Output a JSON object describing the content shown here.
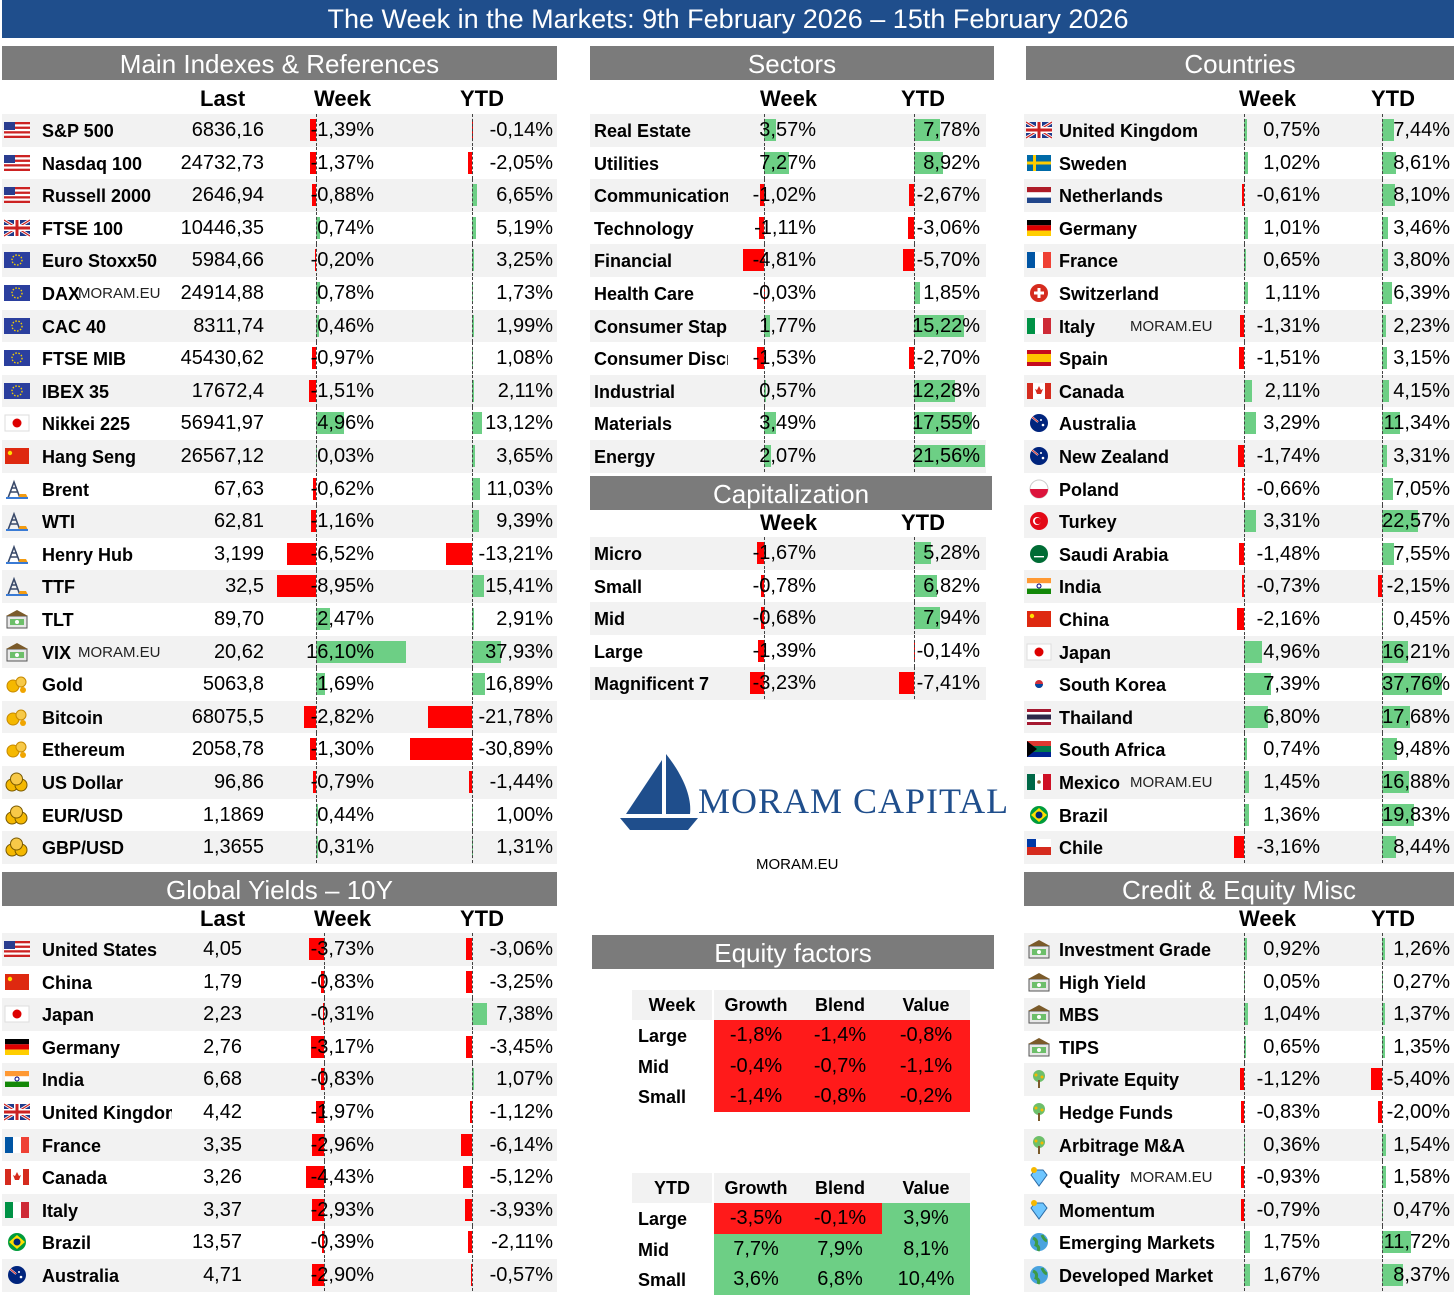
{
  "banner": "The Week in the Markets: 9th February 2026 – 15th February 2026",
  "watermark": "MORAM.EU",
  "colors": {
    "negative": "#ff0000",
    "positive": "#6dcf85",
    "header": "#7b7b7b",
    "banner": "#1f4e8c"
  },
  "main": {
    "title": "Main Indexes & References",
    "cols": [
      "Last",
      "Week",
      "YTD"
    ],
    "rows": [
      {
        "name": "S&P 500",
        "icon": "us-flag-icon",
        "last": "6836,16",
        "week": -1.39,
        "week_s": "-1,39%",
        "ytd": -0.14,
        "ytd_s": "-0,14%"
      },
      {
        "name": "Nasdaq 100",
        "icon": "us-flag-icon",
        "last": "24732,73",
        "week": -1.37,
        "week_s": "-1,37%",
        "ytd": -2.05,
        "ytd_s": "-2,05%"
      },
      {
        "name": "Russell 2000",
        "icon": "us-flag-icon",
        "last": "2646,94",
        "week": -0.88,
        "week_s": "-0,88%",
        "ytd": 6.65,
        "ytd_s": "6,65%"
      },
      {
        "name": "FTSE 100",
        "icon": "uk-flag-icon",
        "last": "10446,35",
        "week": 0.74,
        "week_s": "0,74%",
        "ytd": 5.19,
        "ytd_s": "5,19%"
      },
      {
        "name": "Euro Stoxx50",
        "icon": "eu-flag-icon",
        "last": "5984,66",
        "week": -0.2,
        "week_s": "-0,20%",
        "ytd": 3.25,
        "ytd_s": "3,25%"
      },
      {
        "name": "DAX",
        "icon": "eu-flag-icon",
        "wm": "MORAM.EU",
        "last": "24914,88",
        "week": 0.78,
        "week_s": "0,78%",
        "ytd": 1.73,
        "ytd_s": "1,73%"
      },
      {
        "name": "CAC 40",
        "icon": "eu-flag-icon",
        "last": "8311,74",
        "week": 0.46,
        "week_s": "0,46%",
        "ytd": 1.99,
        "ytd_s": "1,99%"
      },
      {
        "name": "FTSE MIB",
        "icon": "eu-flag-icon",
        "last": "45430,62",
        "week": -0.97,
        "week_s": "-0,97%",
        "ytd": 1.08,
        "ytd_s": "1,08%"
      },
      {
        "name": "IBEX 35",
        "icon": "eu-flag-icon",
        "last": "17672,4",
        "week": -1.51,
        "week_s": "-1,51%",
        "ytd": 2.11,
        "ytd_s": "2,11%"
      },
      {
        "name": "Nikkei 225",
        "icon": "japan-flag-icon",
        "last": "56941,97",
        "week": 4.96,
        "week_s": "4,96%",
        "ytd": 13.12,
        "ytd_s": "13,12%"
      },
      {
        "name": "Hang Seng",
        "icon": "china-flag-icon",
        "last": "26567,12",
        "week": 0.03,
        "week_s": "0,03%",
        "ytd": 3.65,
        "ytd_s": "3,65%"
      },
      {
        "name": "Brent",
        "icon": "oil-rig-icon",
        "last": "67,63",
        "week": -0.62,
        "week_s": "-0,62%",
        "ytd": 11.03,
        "ytd_s": "11,03%"
      },
      {
        "name": "WTI",
        "icon": "oil-rig-icon",
        "last": "62,81",
        "week": -1.16,
        "week_s": "-1,16%",
        "ytd": 9.39,
        "ytd_s": "9,39%"
      },
      {
        "name": "Henry Hub",
        "icon": "oil-rig-icon",
        "last": "3,199",
        "week": -6.52,
        "week_s": "-6,52%",
        "ytd": -13.21,
        "ytd_s": "-13,21%"
      },
      {
        "name": "TTF",
        "icon": "oil-rig-icon",
        "last": "32,5",
        "week": -8.95,
        "week_s": "-8,95%",
        "ytd": 15.41,
        "ytd_s": "15,41%"
      },
      {
        "name": "TLT",
        "icon": "bank-icon",
        "last": "89,70",
        "week": 2.47,
        "week_s": "2,47%",
        "ytd": 2.91,
        "ytd_s": "2,91%"
      },
      {
        "name": "VIX",
        "icon": "bank-icon",
        "wm": "MORAM.EU",
        "last": "20,62",
        "week": 16.1,
        "week_s": "16,10%",
        "ytd": 37.93,
        "ytd_s": "37,93%"
      },
      {
        "name": "Gold",
        "icon": "coin-icon",
        "last": "5063,8",
        "week": 1.69,
        "week_s": "1,69%",
        "ytd": 16.89,
        "ytd_s": "16,89%"
      },
      {
        "name": "Bitcoin",
        "icon": "coin-icon",
        "last": "68075,5",
        "week": -2.82,
        "week_s": "-2,82%",
        "ytd": -21.78,
        "ytd_s": "-21,78%"
      },
      {
        "name": "Ethereum",
        "icon": "coin-icon",
        "last": "2058,78",
        "week": -1.3,
        "week_s": "-1,30%",
        "ytd": -30.89,
        "ytd_s": "-30,89%"
      },
      {
        "name": "US Dollar",
        "icon": "coins-icon",
        "last": "96,86",
        "week": -0.79,
        "week_s": "-0,79%",
        "ytd": -1.44,
        "ytd_s": "-1,44%"
      },
      {
        "name": "EUR/USD",
        "icon": "coins-icon",
        "last": "1,1869",
        "week": 0.44,
        "week_s": "0,44%",
        "ytd": 1.0,
        "ytd_s": "1,00%"
      },
      {
        "name": "GBP/USD",
        "icon": "coins-icon",
        "last": "1,3655",
        "week": 0.31,
        "week_s": "0,31%",
        "ytd": 1.31,
        "ytd_s": "1,31%"
      }
    ]
  },
  "sectors": {
    "title": "Sectors",
    "cols": [
      "Week",
      "YTD"
    ],
    "rows": [
      {
        "name": "Real Estate",
        "week": 3.57,
        "week_s": "3,57%",
        "ytd": 7.78,
        "ytd_s": "7,78%"
      },
      {
        "name": "Utilities",
        "week": 7.27,
        "week_s": "7,27%",
        "ytd": 8.92,
        "ytd_s": "8,92%"
      },
      {
        "name": "Communication",
        "week": -1.02,
        "week_s": "-1,02%",
        "ytd": -2.67,
        "ytd_s": "-2,67%"
      },
      {
        "name": "Technology",
        "week": -1.11,
        "week_s": "-1,11%",
        "ytd": -3.06,
        "ytd_s": "-3,06%"
      },
      {
        "name": "Financial",
        "week": -4.81,
        "week_s": "-4,81%",
        "ytd": -5.7,
        "ytd_s": "-5,70%"
      },
      {
        "name": "Health Care",
        "week": -0.03,
        "week_s": "-0,03%",
        "ytd": 1.85,
        "ytd_s": "1,85%"
      },
      {
        "name": "Consumer Staple",
        "week": 1.77,
        "week_s": "1,77%",
        "ytd": 15.22,
        "ytd_s": "15,22%"
      },
      {
        "name": "Consumer Discre",
        "week": -1.53,
        "week_s": "-1,53%",
        "ytd": -2.7,
        "ytd_s": "-2,70%"
      },
      {
        "name": "Industrial",
        "week": 0.57,
        "week_s": "0,57%",
        "ytd": 12.28,
        "ytd_s": "12,28%"
      },
      {
        "name": "Materials",
        "week": 3.49,
        "week_s": "3,49%",
        "ytd": 17.55,
        "ytd_s": "17,55%"
      },
      {
        "name": "Energy",
        "week": 2.07,
        "week_s": "2,07%",
        "ytd": 21.56,
        "ytd_s": "21,56%"
      }
    ]
  },
  "cap": {
    "title": "Capitalization",
    "cols": [
      "Week",
      "YTD"
    ],
    "rows": [
      {
        "name": "Micro",
        "week": -1.67,
        "week_s": "-1,67%",
        "ytd": 5.28,
        "ytd_s": "5,28%"
      },
      {
        "name": "Small",
        "week": -0.78,
        "week_s": "-0,78%",
        "ytd": 6.82,
        "ytd_s": "6,82%"
      },
      {
        "name": "Mid",
        "week": -0.68,
        "week_s": "-0,68%",
        "ytd": 7.94,
        "ytd_s": "7,94%"
      },
      {
        "name": "Large",
        "week": -1.39,
        "week_s": "-1,39%",
        "ytd": -0.14,
        "ytd_s": "-0,14%"
      },
      {
        "name": "Magnificent 7",
        "week": -3.23,
        "week_s": "-3,23%",
        "ytd": -7.41,
        "ytd_s": "-7,41%"
      }
    ]
  },
  "countries": {
    "title": "Countries",
    "cols": [
      "Week",
      "YTD"
    ],
    "rows": [
      {
        "name": "United Kingdom",
        "icon": "uk-flag-icon",
        "week": 0.75,
        "week_s": "0,75%",
        "ytd": 7.44,
        "ytd_s": "7,44%"
      },
      {
        "name": "Sweden",
        "icon": "sweden-flag-icon",
        "week": 1.02,
        "week_s": "1,02%",
        "ytd": 8.61,
        "ytd_s": "8,61%"
      },
      {
        "name": "Netherlands",
        "icon": "netherlands-flag-icon",
        "week": -0.61,
        "week_s": "-0,61%",
        "ytd": 8.1,
        "ytd_s": "8,10%"
      },
      {
        "name": "Germany",
        "icon": "germany-flag-icon",
        "week": 1.01,
        "week_s": "1,01%",
        "ytd": 3.46,
        "ytd_s": "3,46%"
      },
      {
        "name": "France",
        "icon": "france-flag-icon",
        "week": 0.65,
        "week_s": "0,65%",
        "ytd": 3.8,
        "ytd_s": "3,80%"
      },
      {
        "name": "Switzerland",
        "icon": "switzerland-flag-icon",
        "week": 1.11,
        "week_s": "1,11%",
        "ytd": 6.39,
        "ytd_s": "6,39%"
      },
      {
        "name": "Italy",
        "icon": "italy-flag-icon",
        "wm": "MORAM.EU",
        "week": -1.31,
        "week_s": "-1,31%",
        "ytd": 2.23,
        "ytd_s": "2,23%"
      },
      {
        "name": "Spain",
        "icon": "spain-flag-icon",
        "week": -1.51,
        "week_s": "-1,51%",
        "ytd": 3.15,
        "ytd_s": "3,15%"
      },
      {
        "name": "Canada",
        "icon": "canada-flag-icon",
        "week": 2.11,
        "week_s": "2,11%",
        "ytd": 4.15,
        "ytd_s": "4,15%"
      },
      {
        "name": "Australia",
        "icon": "australia-flag-icon",
        "week": 3.29,
        "week_s": "3,29%",
        "ytd": 11.34,
        "ytd_s": "11,34%"
      },
      {
        "name": "New Zealand",
        "icon": "new-zealand-flag-icon",
        "week": -1.74,
        "week_s": "-1,74%",
        "ytd": 3.31,
        "ytd_s": "3,31%"
      },
      {
        "name": "Poland",
        "icon": "poland-flag-icon",
        "week": -0.66,
        "week_s": "-0,66%",
        "ytd": 7.05,
        "ytd_s": "7,05%"
      },
      {
        "name": "Turkey",
        "icon": "turkey-flag-icon",
        "week": 3.31,
        "week_s": "3,31%",
        "ytd": 22.57,
        "ytd_s": "22,57%"
      },
      {
        "name": "Saudi Arabia",
        "icon": "saudi-flag-icon",
        "week": -1.48,
        "week_s": "-1,48%",
        "ytd": 7.55,
        "ytd_s": "7,55%"
      },
      {
        "name": "India",
        "icon": "india-flag-icon",
        "week": -0.73,
        "week_s": "-0,73%",
        "ytd": -2.15,
        "ytd_s": "-2,15%"
      },
      {
        "name": "China",
        "icon": "china-flag-icon",
        "week": -2.16,
        "week_s": "-2,16%",
        "ytd": 0.45,
        "ytd_s": "0,45%"
      },
      {
        "name": "Japan",
        "icon": "japan-flag-icon",
        "week": 4.96,
        "week_s": "4,96%",
        "ytd": 16.21,
        "ytd_s": "16,21%"
      },
      {
        "name": "South Korea",
        "icon": "south-korea-flag-icon",
        "week": 7.39,
        "week_s": "7,39%",
        "ytd": 37.76,
        "ytd_s": "37,76%"
      },
      {
        "name": "Thailand",
        "icon": "thailand-flag-icon",
        "week": 6.8,
        "week_s": "6,80%",
        "ytd": 17.68,
        "ytd_s": "17,68%"
      },
      {
        "name": "South Africa",
        "icon": "south-africa-flag-icon",
        "week": 0.74,
        "week_s": "0,74%",
        "ytd": 9.48,
        "ytd_s": "9,48%"
      },
      {
        "name": "Mexico",
        "icon": "mexico-flag-icon",
        "wm": "MORAM.EU",
        "week": 1.45,
        "week_s": "1,45%",
        "ytd": 16.88,
        "ytd_s": "16,88%"
      },
      {
        "name": "Brazil",
        "icon": "brazil-flag-icon",
        "week": 1.36,
        "week_s": "1,36%",
        "ytd": 19.83,
        "ytd_s": "19,83%"
      },
      {
        "name": "Chile",
        "icon": "chile-flag-icon",
        "week": -3.16,
        "week_s": "-3,16%",
        "ytd": 8.44,
        "ytd_s": "8,44%"
      }
    ]
  },
  "yields": {
    "title": "Global Yields – 10Y",
    "cols": [
      "Last",
      "Week",
      "YTD"
    ],
    "rows": [
      {
        "name": "United States",
        "icon": "us-flag-icon",
        "last": "4,05",
        "week": -3.73,
        "week_s": "-3,73%",
        "ytd": -3.06,
        "ytd_s": "-3,06%"
      },
      {
        "name": "China",
        "icon": "china-flag-icon",
        "last": "1,79",
        "week": -0.83,
        "week_s": "-0,83%",
        "ytd": -3.25,
        "ytd_s": "-3,25%"
      },
      {
        "name": "Japan",
        "icon": "japan-flag-icon",
        "last": "2,23",
        "week": -0.31,
        "week_s": "-0,31%",
        "ytd": 7.38,
        "ytd_s": "7,38%"
      },
      {
        "name": "Germany",
        "icon": "germany-flag-icon",
        "last": "2,76",
        "week": -3.17,
        "week_s": "-3,17%",
        "ytd": -3.45,
        "ytd_s": "-3,45%"
      },
      {
        "name": "India",
        "icon": "india-flag-icon",
        "last": "6,68",
        "week": -0.83,
        "week_s": "-0,83%",
        "ytd": 1.07,
        "ytd_s": "1,07%"
      },
      {
        "name": "United Kingdom",
        "icon": "uk-flag-icon",
        "last": "4,42",
        "week": -1.97,
        "week_s": "-1,97%",
        "ytd": -1.12,
        "ytd_s": "-1,12%"
      },
      {
        "name": "France",
        "icon": "france-flag-icon",
        "last": "3,35",
        "week": -2.96,
        "week_s": "-2,96%",
        "ytd": -6.14,
        "ytd_s": "-6,14%"
      },
      {
        "name": "Canada",
        "icon": "canada-flag-icon",
        "last": "3,26",
        "week": -4.43,
        "week_s": "-4,43%",
        "ytd": -5.12,
        "ytd_s": "-5,12%"
      },
      {
        "name": "Italy",
        "icon": "italy-flag-icon",
        "last": "3,37",
        "week": -2.93,
        "week_s": "-2,93%",
        "ytd": -3.93,
        "ytd_s": "-3,93%"
      },
      {
        "name": "Brazil",
        "icon": "brazil-flag-icon",
        "last": "13,57",
        "week": -0.39,
        "week_s": "-0,39%",
        "ytd": -2.11,
        "ytd_s": "-2,11%"
      },
      {
        "name": "Australia",
        "icon": "australia-flag-icon",
        "last": "4,71",
        "week": -2.9,
        "week_s": "-2,90%",
        "ytd": -0.57,
        "ytd_s": "-0,57%"
      }
    ]
  },
  "credit": {
    "title": "Credit & Equity Misc",
    "cols": [
      "Week",
      "YTD"
    ],
    "rows": [
      {
        "name": "Investment Grade",
        "icon": "bank-icon",
        "week": 0.92,
        "week_s": "0,92%",
        "ytd": 1.26,
        "ytd_s": "1,26%"
      },
      {
        "name": "High Yield",
        "icon": "bank-icon",
        "week": 0.05,
        "week_s": "0,05%",
        "ytd": 0.27,
        "ytd_s": "0,27%"
      },
      {
        "name": "MBS",
        "icon": "bank-icon",
        "week": 1.04,
        "week_s": "1,04%",
        "ytd": 1.37,
        "ytd_s": "1,37%"
      },
      {
        "name": "TIPS",
        "icon": "bank-icon",
        "week": 0.65,
        "week_s": "0,65%",
        "ytd": 1.35,
        "ytd_s": "1,35%"
      },
      {
        "name": "Private Equity",
        "icon": "tree-icon",
        "week": -1.12,
        "week_s": "-1,12%",
        "ytd": -5.4,
        "ytd_s": "-5,40%"
      },
      {
        "name": "Hedge Funds",
        "icon": "tree-icon",
        "week": -0.83,
        "week_s": "-0,83%",
        "ytd": -2.0,
        "ytd_s": "-2,00%"
      },
      {
        "name": "Arbitrage M&A",
        "icon": "tree-icon",
        "week": 0.36,
        "week_s": "0,36%",
        "ytd": 1.54,
        "ytd_s": "1,54%"
      },
      {
        "name": "Quality",
        "icon": "diamond-icon",
        "wm": "MORAM.EU",
        "week": -0.93,
        "week_s": "-0,93%",
        "ytd": 1.58,
        "ytd_s": "1,58%"
      },
      {
        "name": "Momentum",
        "icon": "diamond-icon",
        "week": -0.79,
        "week_s": "-0,79%",
        "ytd": 0.47,
        "ytd_s": "0,47%"
      },
      {
        "name": "Emerging Markets",
        "icon": "globe-icon",
        "week": 1.75,
        "week_s": "1,75%",
        "ytd": 11.72,
        "ytd_s": "11,72%"
      },
      {
        "name": "Developed Market",
        "icon": "globe-icon",
        "week": 1.67,
        "week_s": "1,67%",
        "ytd": 8.37,
        "ytd_s": "8,37%"
      }
    ]
  },
  "factors": {
    "title": "Equity factors",
    "cols": [
      "Growth",
      "Blend",
      "Value"
    ],
    "week": {
      "label": "Week",
      "rows": [
        {
          "name": "Large",
          "vals": [
            -1.8,
            -1.4,
            -0.8
          ],
          "labels": [
            "-1,8%",
            "-1,4%",
            "-0,8%"
          ]
        },
        {
          "name": "Mid",
          "vals": [
            -0.4,
            -0.7,
            -1.1
          ],
          "labels": [
            "-0,4%",
            "-0,7%",
            "-1,1%"
          ]
        },
        {
          "name": "Small",
          "vals": [
            -1.4,
            -0.8,
            -0.2
          ],
          "labels": [
            "-1,4%",
            "-0,8%",
            "-0,2%"
          ]
        }
      ]
    },
    "ytd": {
      "label": "YTD",
      "rows": [
        {
          "name": "Large",
          "vals": [
            -3.5,
            -0.1,
            3.9
          ],
          "labels": [
            "-3,5%",
            "-0,1%",
            "3,9%"
          ]
        },
        {
          "name": "Mid",
          "vals": [
            7.7,
            7.9,
            8.1
          ],
          "labels": [
            "7,7%",
            "7,9%",
            "8,1%"
          ]
        },
        {
          "name": "Small",
          "vals": [
            3.6,
            6.8,
            10.4
          ],
          "labels": [
            "3,6%",
            "6,8%",
            "10,4%"
          ]
        }
      ]
    }
  },
  "logo": {
    "text": "MORAM CAPITAL",
    "url": "MORAM.EU",
    "icon": "sailboat-icon"
  }
}
